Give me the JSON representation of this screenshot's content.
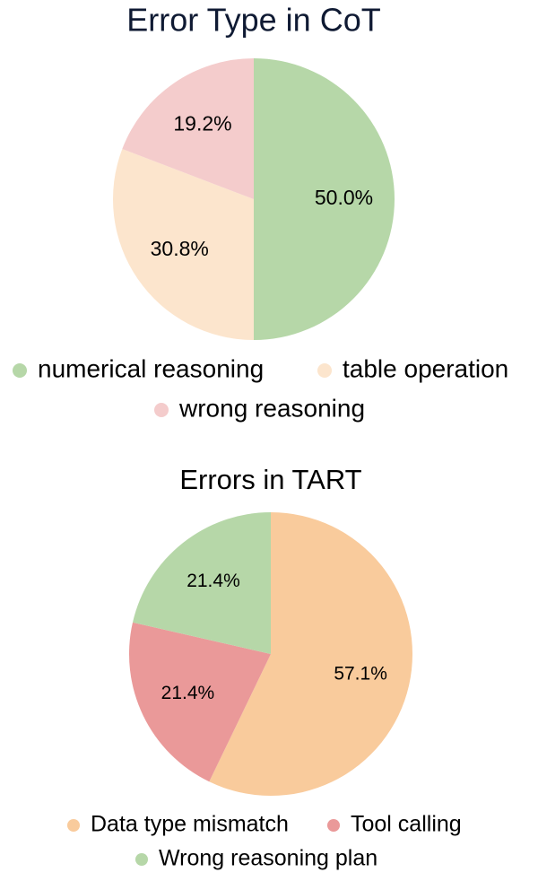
{
  "chart_data": [
    {
      "type": "pie",
      "title": "Error Type in CoT",
      "categories": [
        "numerical reasoning",
        "table operation",
        "wrong reasoning"
      ],
      "values": [
        50.0,
        30.8,
        19.2
      ],
      "value_labels": [
        "50.0%",
        "30.8%",
        "19.2%"
      ],
      "colors": [
        "#b6d7a8",
        "#fce5cd",
        "#f4cccc"
      ]
    },
    {
      "type": "pie",
      "title": "Errors in TART",
      "categories": [
        "Data type mismatch",
        "Tool calling",
        "Wrong reasoning plan"
      ],
      "values": [
        57.1,
        21.4,
        21.4
      ],
      "value_labels": [
        "57.1%",
        "21.4%",
        "21.4%"
      ],
      "colors": [
        "#f9cb9c",
        "#ea9999",
        "#b6d7a8"
      ]
    }
  ]
}
